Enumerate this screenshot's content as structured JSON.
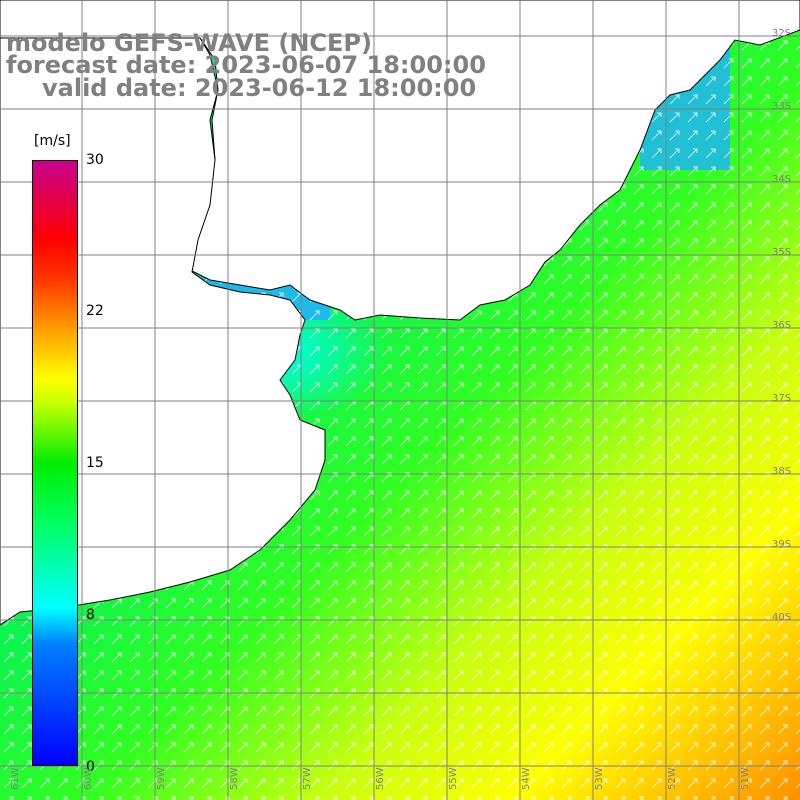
{
  "title": {
    "model": "modelo GEFS-WAVE (NCEP)",
    "forecast_date": "forecast date: 2023-06-07 18:00:00",
    "valid_date": "valid date: 2023-06-12 18:00:00"
  },
  "legend": {
    "unit": "[m/s]",
    "ticks": [
      "30",
      "22",
      "15",
      "8",
      "0"
    ],
    "colors": [
      "#0000ff",
      "#0080ff",
      "#00ffff",
      "#00ff60",
      "#00ee00",
      "#c8ff00",
      "#ffff00",
      "#ffa000",
      "#ff3000",
      "#ff0000",
      "#c8008c"
    ]
  },
  "map": {
    "lon_labels": [
      "61W",
      "60W",
      "59W",
      "58W",
      "57W",
      "56W",
      "55W",
      "54W",
      "53W",
      "52W",
      "51W"
    ],
    "lat_labels": [
      "32S",
      "33S",
      "34S",
      "35S",
      "36S",
      "37S",
      "38S",
      "39S",
      "40S"
    ],
    "land_color": "#ffffff",
    "arrow_color": "#ffffff",
    "grid_color": "#808080"
  }
}
